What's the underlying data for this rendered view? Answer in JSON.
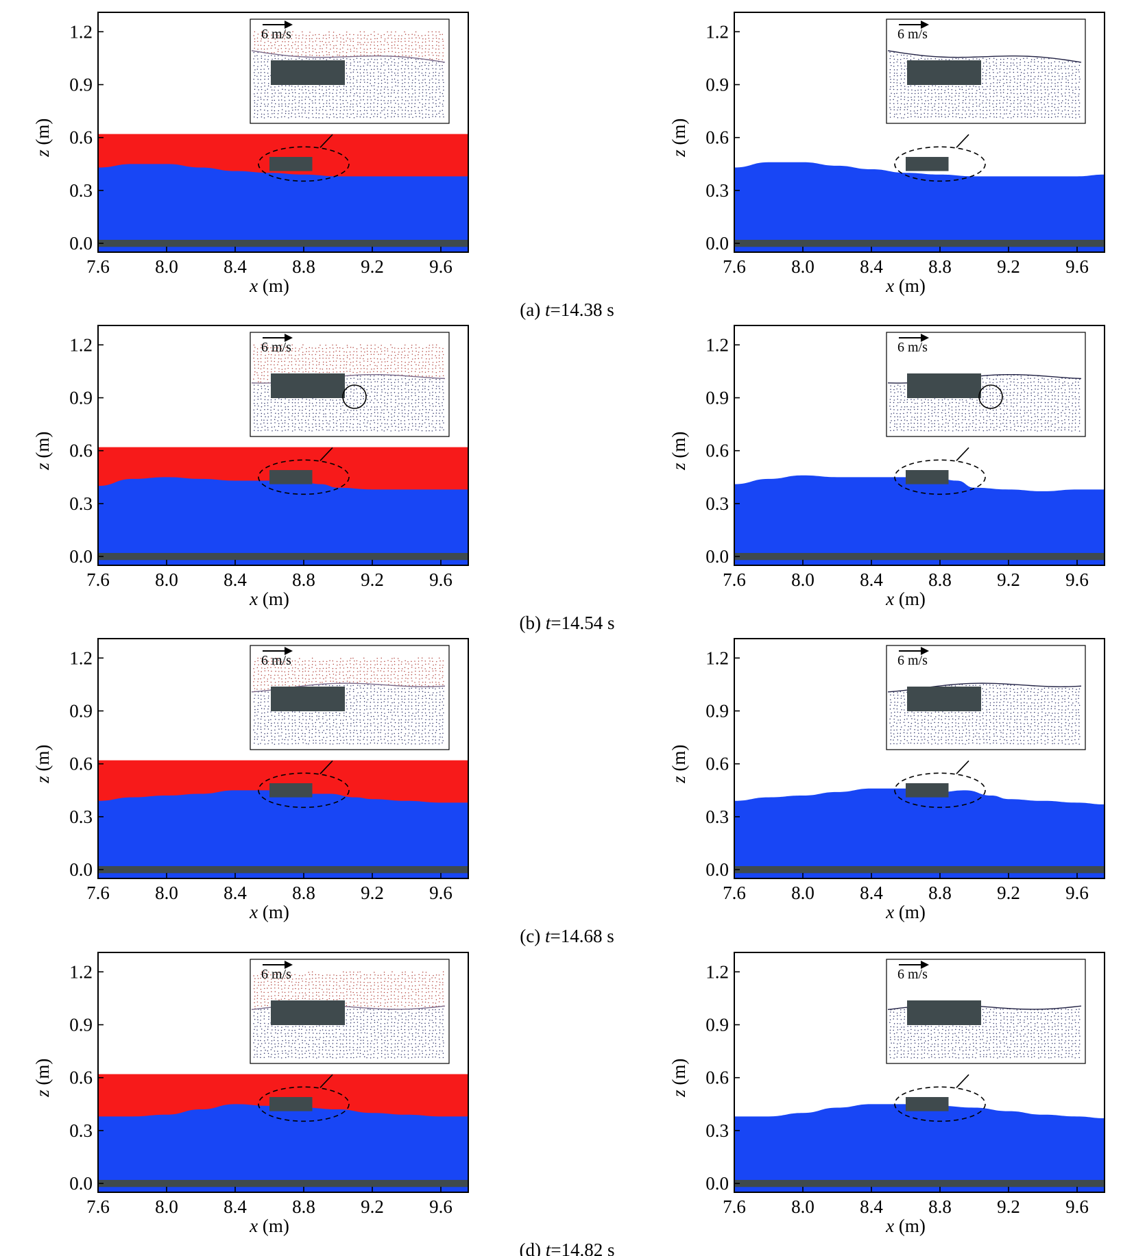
{
  "figure": {
    "rows": [
      {
        "caption_prefix": "(a) ",
        "caption_t": "t",
        "caption_rest": "=14.38 s"
      },
      {
        "caption_prefix": "(b) ",
        "caption_t": "t",
        "caption_rest": "=14.54 s"
      },
      {
        "caption_prefix": "(c) ",
        "caption_t": "t",
        "caption_rest": "=14.68 s"
      },
      {
        "caption_prefix": "(d) ",
        "caption_t": "t",
        "caption_rest": "=14.82 s"
      }
    ],
    "panels_per_row": [
      "two-phase",
      "single-phase"
    ],
    "x_axis": {
      "label_var": "x",
      "label_unit": " (m)",
      "min": 7.6,
      "max": 9.76,
      "ticks": [
        "7.6",
        "8.0",
        "8.4",
        "8.8",
        "9.2",
        "9.6"
      ],
      "tick_values": [
        7.6,
        8.0,
        8.4,
        8.8,
        9.2,
        9.6
      ]
    },
    "y_axis": {
      "label_var": "z",
      "label_unit": " (m)",
      "min": -0.05,
      "max": 1.31,
      "ticks": [
        "0.0",
        "0.3",
        "0.6",
        "0.9",
        "1.2"
      ],
      "tick_values": [
        0.0,
        0.3,
        0.6,
        0.9,
        1.2
      ]
    },
    "inset_scale_label": "6 m/s",
    "colors": {
      "water": "#1846f5",
      "air": "#f71a1a",
      "structure": "#3f4a4d",
      "frame": "#000000"
    },
    "structure": {
      "x_min": 8.6,
      "x_max": 8.85,
      "z_min": 0.41,
      "z_max": 0.49
    },
    "air_top_z": 0.62,
    "bed_z": [
      -0.02,
      0.02
    ]
  },
  "chart_data": [
    {
      "type": "area",
      "row": "a",
      "model": "two-phase",
      "x": [
        7.6,
        7.8,
        8.0,
        8.2,
        8.4,
        8.6,
        8.8,
        9.0,
        9.2,
        9.4,
        9.6,
        9.76
      ],
      "surface_z": [
        0.43,
        0.45,
        0.45,
        0.43,
        0.41,
        0.4,
        0.39,
        0.38,
        0.38,
        0.38,
        0.38,
        0.38
      ],
      "xlabel": "x (m)",
      "ylabel": "z (m)",
      "xlim": [
        7.6,
        9.76
      ],
      "ylim": [
        -0.05,
        1.31
      ]
    },
    {
      "type": "area",
      "row": "a",
      "model": "single-phase",
      "x": [
        7.6,
        7.8,
        8.0,
        8.2,
        8.4,
        8.6,
        8.8,
        9.0,
        9.2,
        9.4,
        9.6,
        9.76
      ],
      "surface_z": [
        0.43,
        0.46,
        0.46,
        0.44,
        0.42,
        0.4,
        0.39,
        0.38,
        0.38,
        0.38,
        0.38,
        0.39
      ],
      "xlabel": "x (m)",
      "ylabel": "z (m)",
      "xlim": [
        7.6,
        9.76
      ],
      "ylim": [
        -0.05,
        1.31
      ]
    },
    {
      "type": "area",
      "row": "b",
      "model": "two-phase",
      "x": [
        7.6,
        7.8,
        8.0,
        8.2,
        8.4,
        8.6,
        8.8,
        8.9,
        9.0,
        9.2,
        9.4,
        9.6,
        9.76
      ],
      "surface_z": [
        0.4,
        0.44,
        0.45,
        0.44,
        0.43,
        0.43,
        0.42,
        0.41,
        0.39,
        0.38,
        0.38,
        0.38,
        0.38
      ],
      "xlabel": "x (m)",
      "ylabel": "z (m)",
      "xlim": [
        7.6,
        9.76
      ],
      "ylim": [
        -0.05,
        1.31
      ]
    },
    {
      "type": "area",
      "row": "b",
      "model": "single-phase",
      "x": [
        7.6,
        7.8,
        8.0,
        8.2,
        8.4,
        8.6,
        8.8,
        8.9,
        9.0,
        9.2,
        9.4,
        9.6,
        9.76
      ],
      "surface_z": [
        0.41,
        0.44,
        0.46,
        0.45,
        0.45,
        0.45,
        0.44,
        0.43,
        0.39,
        0.38,
        0.37,
        0.38,
        0.38
      ],
      "xlabel": "x (m)",
      "ylabel": "z (m)",
      "xlim": [
        7.6,
        9.76
      ],
      "ylim": [
        -0.05,
        1.31
      ]
    },
    {
      "type": "area",
      "row": "c",
      "model": "two-phase",
      "x": [
        7.6,
        7.8,
        8.0,
        8.2,
        8.4,
        8.6,
        8.8,
        8.95,
        9.1,
        9.2,
        9.4,
        9.6,
        9.76
      ],
      "surface_z": [
        0.39,
        0.41,
        0.42,
        0.43,
        0.45,
        0.45,
        0.43,
        0.43,
        0.41,
        0.4,
        0.39,
        0.38,
        0.38
      ],
      "xlabel": "x (m)",
      "ylabel": "z (m)",
      "xlim": [
        7.6,
        9.76
      ],
      "ylim": [
        -0.05,
        1.31
      ]
    },
    {
      "type": "area",
      "row": "c",
      "model": "single-phase",
      "x": [
        7.6,
        7.8,
        8.0,
        8.2,
        8.4,
        8.6,
        8.8,
        8.95,
        9.1,
        9.2,
        9.4,
        9.6,
        9.76
      ],
      "surface_z": [
        0.39,
        0.41,
        0.42,
        0.44,
        0.46,
        0.46,
        0.44,
        0.45,
        0.42,
        0.4,
        0.39,
        0.38,
        0.37
      ],
      "xlabel": "x (m)",
      "ylabel": "z (m)",
      "xlim": [
        7.6,
        9.76
      ],
      "ylim": [
        -0.05,
        1.31
      ]
    },
    {
      "type": "area",
      "row": "d",
      "model": "two-phase",
      "x": [
        7.6,
        7.8,
        8.0,
        8.2,
        8.4,
        8.6,
        8.8,
        9.0,
        9.2,
        9.4,
        9.6,
        9.76
      ],
      "surface_z": [
        0.38,
        0.38,
        0.39,
        0.42,
        0.45,
        0.44,
        0.43,
        0.42,
        0.4,
        0.39,
        0.38,
        0.38
      ],
      "xlabel": "x (m)",
      "ylabel": "z (m)",
      "xlim": [
        7.6,
        9.76
      ],
      "ylim": [
        -0.05,
        1.31
      ]
    },
    {
      "type": "area",
      "row": "d",
      "model": "single-phase",
      "x": [
        7.6,
        7.8,
        8.0,
        8.2,
        8.4,
        8.6,
        8.8,
        9.0,
        9.2,
        9.4,
        9.6,
        9.76
      ],
      "surface_z": [
        0.38,
        0.38,
        0.4,
        0.43,
        0.45,
        0.45,
        0.44,
        0.43,
        0.41,
        0.39,
        0.38,
        0.37
      ],
      "xlabel": "x (m)",
      "ylabel": "z (m)",
      "xlim": [
        7.6,
        9.76
      ],
      "ylim": [
        -0.05,
        1.31
      ]
    }
  ]
}
